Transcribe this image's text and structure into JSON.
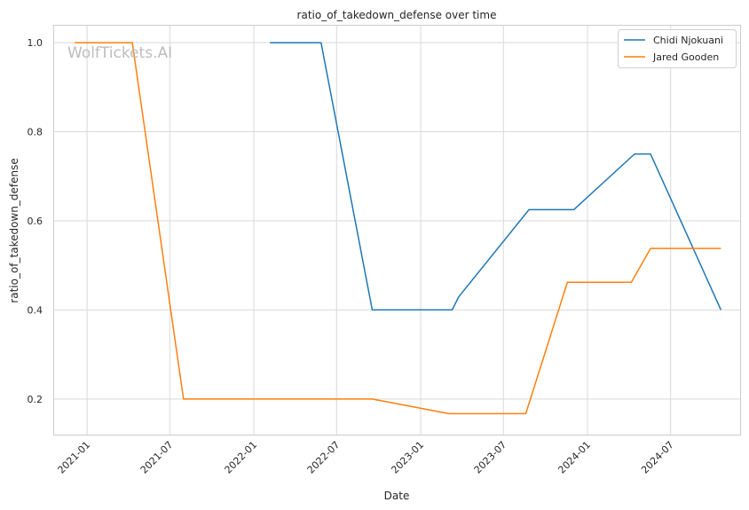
{
  "chart_data": {
    "type": "line",
    "title": "ratio_of_takedown_defense over time",
    "xlabel": "Date",
    "ylabel": "ratio_of_takedown_defense",
    "watermark": "WolfTickets.AI",
    "x_axis": {
      "range": [
        "2020-10-19",
        "2024-11-30"
      ],
      "ticks": [
        "2021-01",
        "2021-07",
        "2022-01",
        "2022-07",
        "2023-01",
        "2023-07",
        "2024-01",
        "2024-07"
      ]
    },
    "y_axis": {
      "range": [
        0.12,
        1.04
      ],
      "ticks": [
        "0.2",
        "0.4",
        "0.6",
        "0.8",
        "1.0"
      ]
    },
    "grid": true,
    "legend_position": "top-right",
    "series": [
      {
        "name": "Chidi Njokuani",
        "color": "#1f77b4",
        "points": [
          {
            "x": "2022-02-05",
            "y": 1.0
          },
          {
            "x": "2022-05-28",
            "y": 1.0
          },
          {
            "x": "2022-09-17",
            "y": 0.4
          },
          {
            "x": "2023-03-11",
            "y": 0.4
          },
          {
            "x": "2023-03-25",
            "y": 0.429
          },
          {
            "x": "2023-08-26",
            "y": 0.625
          },
          {
            "x": "2023-12-02",
            "y": 0.625
          },
          {
            "x": "2024-04-13",
            "y": 0.75
          },
          {
            "x": "2024-05-18",
            "y": 0.75
          },
          {
            "x": "2024-10-19",
            "y": 0.4
          }
        ]
      },
      {
        "name": "Jared Gooden",
        "color": "#ff7f0e",
        "points": [
          {
            "x": "2020-12-05",
            "y": 1.0
          },
          {
            "x": "2021-04-10",
            "y": 1.0
          },
          {
            "x": "2021-07-31",
            "y": 0.2
          },
          {
            "x": "2022-09-17",
            "y": 0.2
          },
          {
            "x": "2023-03-04",
            "y": 0.167
          },
          {
            "x": "2023-08-19",
            "y": 0.167
          },
          {
            "x": "2023-11-18",
            "y": 0.462
          },
          {
            "x": "2024-04-06",
            "y": 0.462
          },
          {
            "x": "2024-05-18",
            "y": 0.538
          },
          {
            "x": "2024-10-19",
            "y": 0.538
          }
        ]
      }
    ]
  }
}
